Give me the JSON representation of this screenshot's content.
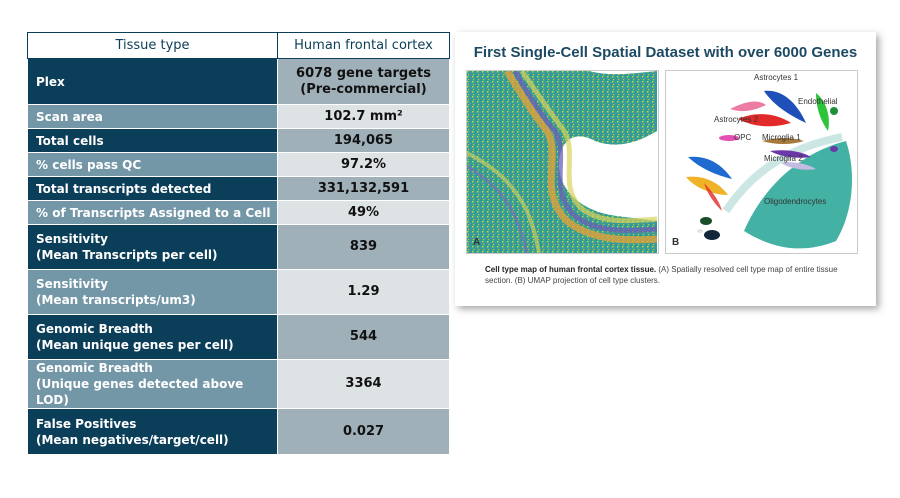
{
  "table": {
    "header": {
      "left": "Tissue type",
      "right": "Human frontal cortex"
    },
    "rows": [
      {
        "label": [
          "Plex"
        ],
        "value": [
          "6078 gene targets",
          "(Pre-commercial)"
        ],
        "shade": "dark"
      },
      {
        "label": [
          "Scan area"
        ],
        "value": [
          "102.7 mm²"
        ],
        "shade": "light"
      },
      {
        "label": [
          "Total cells"
        ],
        "value": [
          "194,065"
        ],
        "shade": "dark"
      },
      {
        "label": [
          "% cells pass QC"
        ],
        "value": [
          "97.2%"
        ],
        "shade": "light"
      },
      {
        "label": [
          "Total transcripts detected"
        ],
        "value": [
          "331,132,591"
        ],
        "shade": "dark"
      },
      {
        "label": [
          "% of Transcripts Assigned to a Cell"
        ],
        "value": [
          "49%"
        ],
        "shade": "light"
      },
      {
        "label": [
          "Sensitivity",
          "(Mean Transcripts per cell)"
        ],
        "value": [
          "839"
        ],
        "shade": "dark"
      },
      {
        "label": [
          "Sensitivity",
          "(Mean transcripts/um3)"
        ],
        "value": [
          "1.29"
        ],
        "shade": "light"
      },
      {
        "label": [
          "Genomic Breadth",
          "(Mean unique genes per cell)"
        ],
        "value": [
          "544"
        ],
        "shade": "dark"
      },
      {
        "label": [
          "Genomic Breadth",
          "(Unique genes detected above LOD)"
        ],
        "value": [
          "3364"
        ],
        "shade": "light"
      },
      {
        "label": [
          "False Positives",
          "(Mean negatives/target/cell)"
        ],
        "value": [
          "0.027"
        ],
        "shade": "dark"
      }
    ]
  },
  "figure": {
    "title": "First Single-Cell Spatial Dataset with over 6000 Genes",
    "panel_a_letter": "A",
    "panel_b_letter": "B",
    "cluster_labels": {
      "astrocytes1": "Astrocytes 1",
      "endothelial": "Endothelial",
      "astrocytes2": "Astrocytes 2",
      "opc": "OPC",
      "microglia1": "Microglia 1",
      "microglia2": "Microglia 2",
      "oligodendrocytes": "Oligodendrocytes"
    },
    "caption_bold": "Cell type map of human frontal cortex tissue.",
    "caption_rest": " (A) Spatially resolved cell type map of entire tissue section. (B) UMAP projection of cell type clusters.",
    "colors": {
      "table_dark": "#0b3e58",
      "table_light": "#7497a8",
      "value_dark": "#9fb0b9",
      "value_light": "#dde2e5",
      "title": "#1c4a63"
    }
  }
}
